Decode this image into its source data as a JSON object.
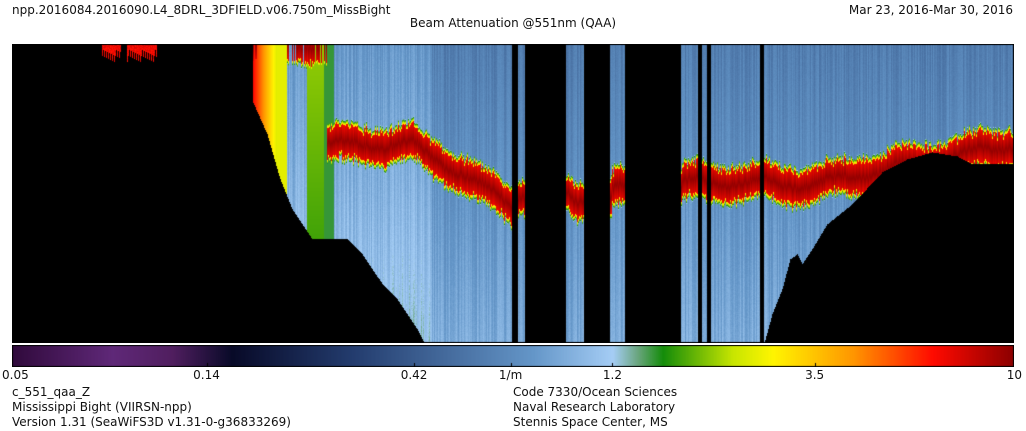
{
  "header": {
    "filename": "npp.2016084.2016090.L4_8DRL_3DFIELD.v06.750m_MissBight",
    "title": "Beam Attenuation @551nm (QAA)",
    "date_range": "Mar 23, 2016-Mar 30, 2016"
  },
  "colorbar": {
    "scale": "log",
    "range": [
      0.05,
      10
    ],
    "ticks": [
      {
        "value": 0.05,
        "label": "0.05"
      },
      {
        "value": 0.14,
        "label": "0.14"
      },
      {
        "value": 0.42,
        "label": "0.42"
      },
      {
        "value": 0.7,
        "label": "1/m"
      },
      {
        "value": 1.2,
        "label": "1.2"
      },
      {
        "value": 3.5,
        "label": "3.5"
      },
      {
        "value": 10,
        "label": "10"
      }
    ]
  },
  "footer": {
    "left": [
      "c_551_qaa_Z",
      "Mississippi Bight (VIIRSN-npp)",
      "Version 1.31 (SeaWiFS3D v1.31-0-g36833269)"
    ],
    "right": [
      "Code 7330/Ocean Sciences",
      "Naval Research Laboratory",
      "Stennis Space Center, MS"
    ]
  },
  "colors": {
    "land_nodata": "#000000",
    "low": "#3a0a4a",
    "mid": "#9ec8f0",
    "high": "#8b0000"
  },
  "chart_data": {
    "type": "heatmap",
    "title": "Beam Attenuation @551nm (QAA)",
    "units": "1/m",
    "color_scale": "log",
    "value_range": [
      0.05,
      10
    ],
    "description_fields": {
      "variable": "c_551_qaa_Z",
      "region": "Mississippi Bight (VIIRSN-npp)"
    }
  }
}
